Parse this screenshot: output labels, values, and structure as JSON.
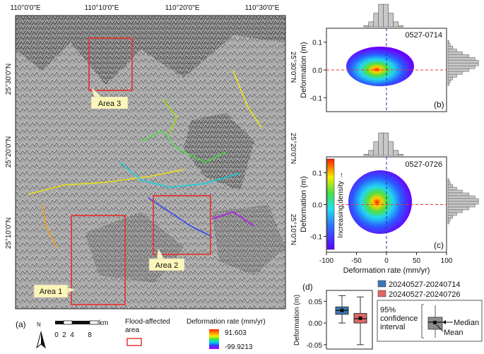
{
  "panel_a": {
    "letter": "(a)",
    "top_ticks": [
      "110°0'0\"E",
      "110°10'0\"E",
      "110°20'0\"E",
      "110°30'0\"E"
    ],
    "left_ticks": [
      "25°30'0\"N",
      "25°20'0\"N",
      "25°10'0\"N"
    ],
    "right_ticks": [
      "25°30'0\"N",
      "25°20'0\"N",
      "25°10'0\"N"
    ],
    "areas": [
      {
        "label": "Area 1"
      },
      {
        "label": "Area 2"
      },
      {
        "label": "Area 3"
      }
    ],
    "north": "N",
    "scalebar": {
      "labels": [
        "0",
        "2",
        "4",
        "8"
      ],
      "unit": "km"
    },
    "flood_legend": "Flood-affected area",
    "rate_legend": {
      "title": "Deformation rate (mm/yr)",
      "max": "91.603",
      "min": "-99.9213"
    },
    "colors": {
      "flood_box": "#e53935",
      "callout": "#fbf5b8"
    }
  },
  "panel_b": {
    "letter": "(b)",
    "date_label": "0527-0714"
  },
  "panel_c": {
    "letter": "(c)",
    "date_label": "0527-0726",
    "density_label": "Increasing density →"
  },
  "panel_d": {
    "letter": "(d)",
    "legend_labels": [
      "20240527-20240714",
      "20240527-20240726"
    ],
    "ci_label": "95% confidence interval",
    "median_label": "Median",
    "mean_label": "Mean"
  },
  "chart_data": [
    {
      "type": "scatter",
      "panel": "b",
      "note": "density scatter with marginal histograms",
      "xlabel": "",
      "ylabel": "Deformation (m)",
      "xlim": [
        -100,
        100
      ],
      "ylim": [
        -0.15,
        0.15
      ],
      "yticks": [
        -0.1,
        0.0,
        0.1
      ],
      "density_center": {
        "x": -5,
        "y": 0.025
      },
      "reference_lines": {
        "x": 0,
        "y": 0
      }
    },
    {
      "type": "scatter",
      "panel": "c",
      "note": "density scatter with marginal histograms",
      "xlabel": "Deformation rate (mm/yr)",
      "ylabel": "Deformation (m)",
      "xlim": [
        -100,
        100
      ],
      "ylim": [
        -0.15,
        0.15
      ],
      "xticks": [
        -100,
        -50,
        0,
        50,
        100
      ],
      "yticks": [
        -0.1,
        0.0,
        0.1
      ],
      "density_center": {
        "x": -5,
        "y": 0.01
      },
      "reference_lines": {
        "x": 0,
        "y": 0
      }
    },
    {
      "type": "box",
      "panel": "d",
      "ylabel": "Deformation (m)",
      "ylim": [
        -0.06,
        0.075
      ],
      "yticks": [
        -0.05,
        0.0,
        0.05
      ],
      "series": [
        {
          "name": "20240527-20240714",
          "color": "#3b78b5",
          "whisker_low": 0.0,
          "q1": 0.02,
          "median": 0.029,
          "mean": 0.029,
          "q3": 0.037,
          "whisker_high": 0.063
        },
        {
          "name": "20240527-20240726",
          "color": "#e06666",
          "whisker_low": -0.05,
          "q1": 0.0,
          "median": 0.01,
          "mean": 0.011,
          "q3": 0.022,
          "whisker_high": 0.06
        }
      ]
    }
  ]
}
